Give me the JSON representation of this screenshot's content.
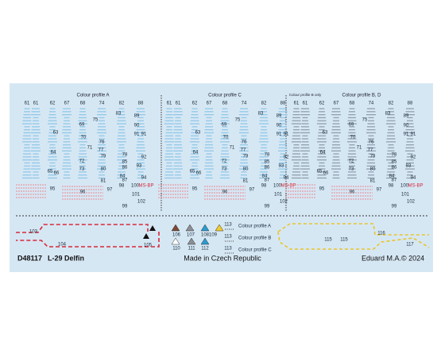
{
  "sheet": {
    "sections": [
      {
        "title": "Colour profile A",
        "columns": [
          "61",
          "61",
          "62",
          "67",
          "68",
          "74",
          "82",
          "88"
        ],
        "labels": [
          "83",
          "89",
          "75",
          "69",
          "90",
          "63",
          "91",
          "91",
          "70",
          "76",
          "71",
          "77",
          "64",
          "78",
          "79",
          "92",
          "72",
          "85",
          "86",
          "93",
          "73",
          "80",
          "65",
          "66",
          "84",
          "87",
          "94",
          "81",
          "97",
          "98",
          "100",
          "MS-BP",
          "95",
          "96",
          "101",
          "99",
          "102"
        ]
      },
      {
        "title": "Colour profile C",
        "columns": [
          "61",
          "61",
          "62",
          "67",
          "68",
          "74",
          "82",
          "88"
        ],
        "labels": [
          "83",
          "89",
          "75",
          "69",
          "90",
          "63",
          "91",
          "91",
          "70",
          "76",
          "71",
          "77",
          "64",
          "78",
          "79",
          "92",
          "72",
          "85",
          "86",
          "93",
          "73",
          "80",
          "65",
          "66",
          "84",
          "87",
          "94",
          "81",
          "97",
          "98",
          "100",
          "MS-BP",
          "95",
          "96",
          "101",
          "99",
          "102"
        ]
      },
      {
        "title": "Colour profile B, D",
        "subtitle": "Colour profile B only",
        "columns": [
          "61",
          "61",
          "62",
          "67",
          "68",
          "74",
          "82",
          "88"
        ],
        "labels": [
          "83",
          "89",
          "75",
          "69",
          "90",
          "63",
          "91",
          "91",
          "70",
          "76",
          "71",
          "77",
          "64",
          "78",
          "79",
          "92",
          "72",
          "85",
          "86",
          "93",
          "73",
          "80",
          "65",
          "66",
          "84",
          "87",
          "94",
          "81",
          "97",
          "98",
          "100",
          "MS-BP",
          "95",
          "96",
          "101",
          "99",
          "102"
        ]
      }
    ],
    "bottom": {
      "labels": [
        "103",
        "104",
        "105",
        "106",
        "107",
        "108",
        "109",
        "110",
        "111",
        "112",
        "115",
        "115",
        "116",
        "117"
      ],
      "legend": [
        {
          "number": "113",
          "text": "Colour profile A"
        },
        {
          "number": "113",
          "text": "Colour profile B"
        },
        {
          "number": "113",
          "text": "Colour profile C"
        }
      ]
    },
    "footer": {
      "code": "D48117",
      "name": "L-29 Delfin",
      "made": "Made in Czech Republic",
      "brand": "Eduard M.A.© 2024"
    }
  }
}
